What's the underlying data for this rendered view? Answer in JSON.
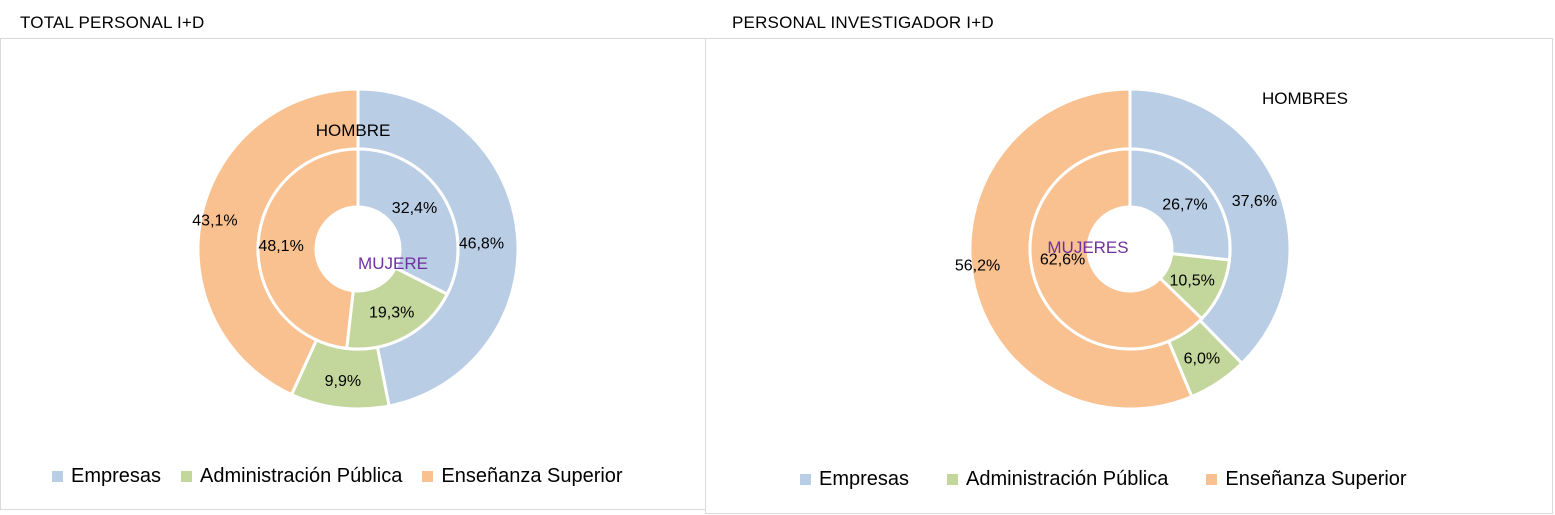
{
  "chart_data": [
    {
      "type": "donut",
      "title": "TOTAL PERSONAL I+D",
      "categories": [
        "Empresas",
        "Administración Pública",
        "Enseñanza Superior"
      ],
      "colors": [
        "#b9cde5",
        "#c3d69b",
        "#f9c090"
      ],
      "series": [
        {
          "name": "HOMBRE",
          "ring": "outer",
          "values": [
            46.8,
            9.9,
            43.1
          ],
          "labels": [
            "46,8%",
            "9,9%",
            "43,1%"
          ]
        },
        {
          "name": "MUJERE",
          "ring": "inner",
          "values": [
            32.4,
            19.3,
            48.1
          ],
          "labels": [
            "32,4%",
            "19,3%",
            "48,1%"
          ]
        }
      ],
      "legend": "bottom"
    },
    {
      "type": "donut",
      "title": "PERSONAL INVESTIGADOR I+D",
      "categories": [
        "Empresas",
        "Administración Pública",
        "Enseñanza Superior"
      ],
      "colors": [
        "#b9cde5",
        "#c3d69b",
        "#f9c090"
      ],
      "series": [
        {
          "name": "HOMBRES",
          "ring": "outer",
          "values": [
            37.6,
            6.0,
            56.2
          ],
          "labels": [
            "37,6%",
            "6,0%",
            "56,2%"
          ]
        },
        {
          "name": "MUJERES",
          "ring": "inner",
          "values": [
            26.7,
            10.5,
            62.6
          ],
          "labels": [
            "26,7%",
            "10,5%",
            "62,6%"
          ]
        }
      ],
      "legend": "bottom"
    }
  ]
}
